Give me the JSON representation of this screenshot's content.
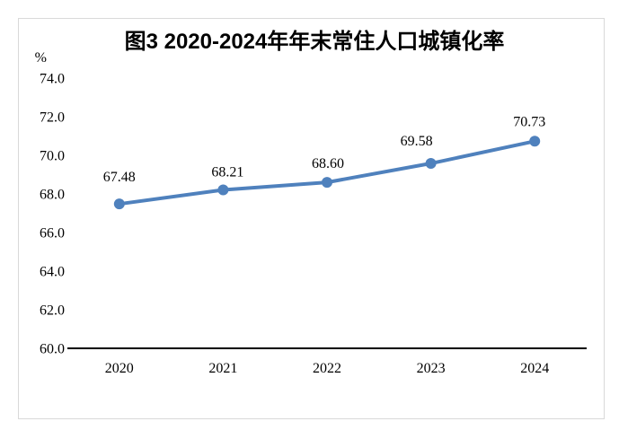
{
  "page": {
    "background_color": "#ffffff",
    "frame_border_color": "#d9d9d9"
  },
  "chart_data": {
    "type": "line",
    "title": "图3 2020-2024年年末常住人口城镇化率",
    "unit_label": "%",
    "categories": [
      "2020",
      "2021",
      "2022",
      "2023",
      "2024"
    ],
    "series": [
      {
        "values": [
          67.48,
          68.21,
          68.6,
          69.58,
          70.73
        ],
        "point_labels": [
          "67.48",
          "68.21",
          "68.60",
          "69.58",
          "70.73"
        ],
        "color": "#4f81bd"
      }
    ],
    "ylim": [
      60.0,
      74.0
    ],
    "ytick_step": 2.0,
    "ytick_labels": [
      "74.0",
      "72.0",
      "70.0",
      "68.0",
      "66.0",
      "64.0",
      "62.0",
      "60.0"
    ],
    "grid": false,
    "legend": false,
    "axis_line_color": "#000000",
    "text_color": "#000000"
  }
}
